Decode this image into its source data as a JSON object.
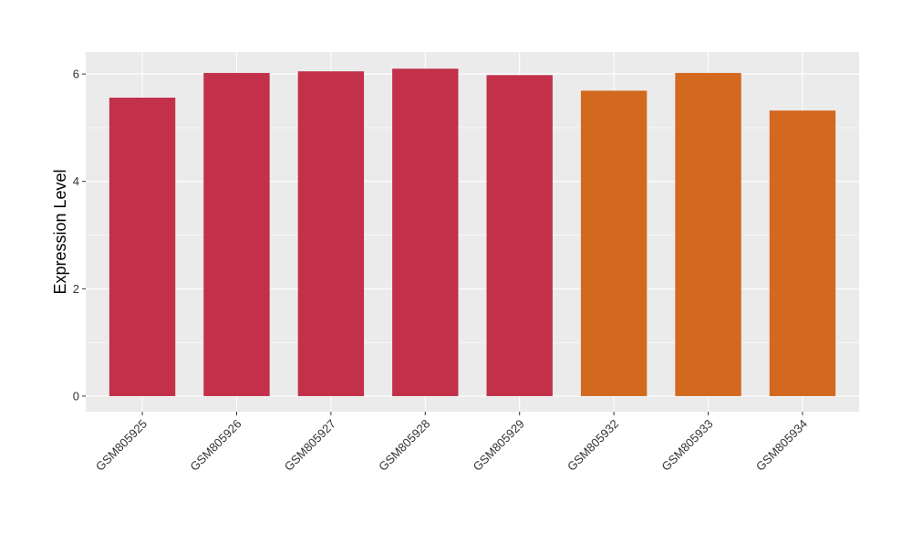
{
  "chart_data": {
    "type": "bar",
    "y_label": "Expression Level",
    "categories": [
      "GSM805925",
      "GSM805926",
      "GSM805927",
      "GSM805928",
      "GSM805929",
      "GSM805932",
      "GSM805933",
      "GSM805934"
    ],
    "values": [
      5.56,
      6.02,
      6.05,
      6.1,
      5.98,
      5.69,
      6.02,
      5.32
    ],
    "colors": [
      "#c23049",
      "#c23049",
      "#c23049",
      "#c23049",
      "#c23049",
      "#d2691e",
      "#d2691e",
      "#d2691e"
    ],
    "ylim": [
      -0.29,
      6.41
    ],
    "yticks": [
      0,
      2,
      4,
      6
    ],
    "minor_yticks": [
      1,
      3,
      5
    ],
    "grid": true
  }
}
